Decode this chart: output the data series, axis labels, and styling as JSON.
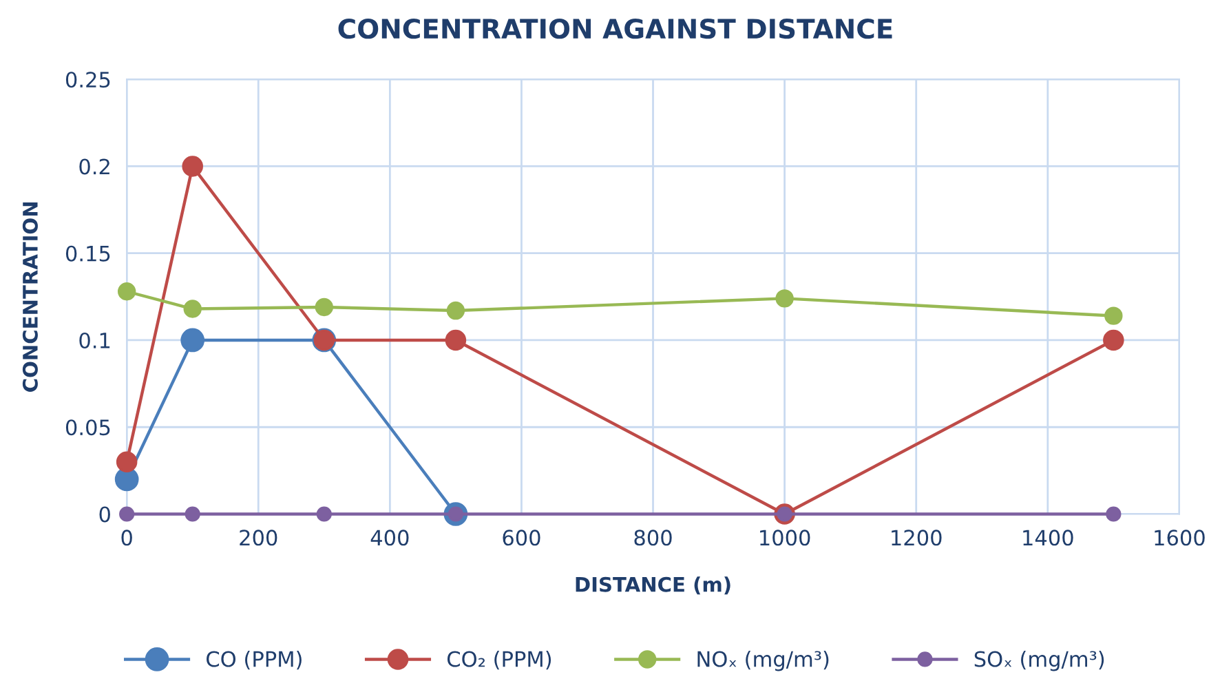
{
  "chart_data": {
    "type": "line",
    "title": "CONCENTRATION AGAINST DISTANCE",
    "xlabel": "DISTANCE (m)",
    "ylabel": "CONCENTRATION",
    "x": [
      0,
      100,
      300,
      500,
      1000,
      1500
    ],
    "series": [
      {
        "name": "CO (PPM)",
        "color": "#4a7ebb",
        "values": [
          0.02,
          0.1,
          0.1,
          0,
          null,
          null
        ]
      },
      {
        "name": "CO₂ (PPM)",
        "color": "#be4b48",
        "values": [
          0.03,
          0.2,
          0.1,
          0.1,
          0,
          0.1
        ]
      },
      {
        "name": "NOₓ (mg/m³)",
        "color": "#98b954",
        "values": [
          0.128,
          0.118,
          0.119,
          0.117,
          0.124,
          0.114
        ]
      },
      {
        "name": "SOₓ (mg/m³)",
        "color": "#7d60a0",
        "values": [
          0,
          0,
          0,
          0,
          0,
          0
        ]
      }
    ],
    "xlim": [
      0,
      1600
    ],
    "xticks": [
      0,
      200,
      400,
      600,
      800,
      1000,
      1200,
      1400,
      1600
    ],
    "ylim": [
      0,
      0.25
    ],
    "yticks": [
      0,
      0.05,
      0.1,
      0.15,
      0.2,
      0.25
    ],
    "grid": true,
    "legend": "bottom",
    "marker": "circle",
    "line_style": "solid"
  }
}
